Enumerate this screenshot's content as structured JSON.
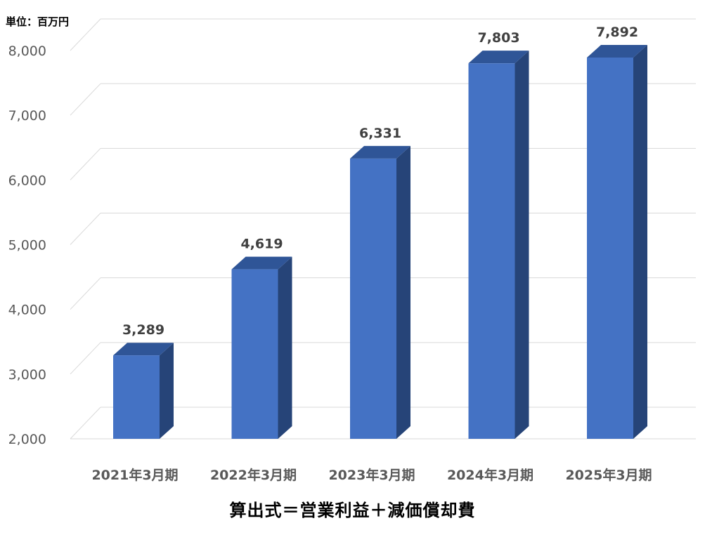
{
  "unit_label": "単位：百万円",
  "formula": "算出式＝営業利益＋減価償却費",
  "colors": {
    "bar_front": "#4472C4",
    "bar_top": "#2F5597",
    "bar_side": "#264478",
    "grid": "#D9D9D9",
    "tick_text": "#595959",
    "label_text": "#404040"
  },
  "chart_data": {
    "type": "bar",
    "style": "3d-column",
    "categories": [
      "2021年3月期",
      "2022年3月期",
      "2023年3月期",
      "2024年3月期",
      "2025年3月期"
    ],
    "values": [
      3289,
      4619,
      6331,
      7803,
      7892
    ],
    "value_labels": [
      "3,289",
      "4,619",
      "6,331",
      "7,803",
      "7,892"
    ],
    "ylim": [
      2000,
      8000
    ],
    "yticks": [
      2000,
      3000,
      4000,
      5000,
      6000,
      7000,
      8000
    ],
    "ytick_labels": [
      "2,000",
      "3,000",
      "4,000",
      "5,000",
      "6,000",
      "7,000",
      "8,000"
    ],
    "grid": true,
    "legend": "none",
    "title": "",
    "xlabel": "",
    "ylabel": ""
  }
}
